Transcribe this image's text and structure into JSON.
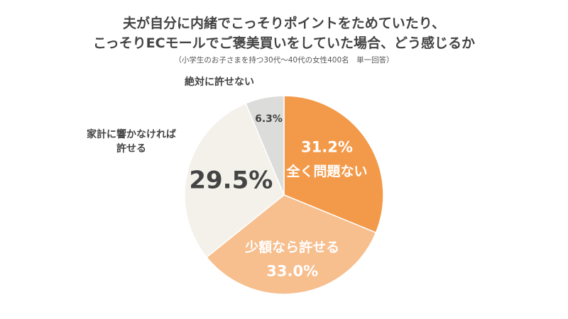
{
  "header": {
    "title_line1": "夫が自分に内緒でこっそりポイントをためていたり、",
    "title_line2": "こっそりECモールでご褒美買いをしていた場合、どう感じるか",
    "subtitle": "（小学生のお子さまを持つ30代〜40代の女性400名　単一回答）"
  },
  "chart_data": {
    "type": "pie",
    "title": "夫が自分に内緒でこっそりポイントをためていたり、こっそりECモールでご褒美買いをしていた場合、どう感じるか",
    "subtitle": "（小学生のお子さまを持つ30代〜40代の女性400名　単一回答）",
    "start_angle_deg": 0,
    "direction": "clockwise",
    "slices": [
      {
        "label": "全く問題ない",
        "value": 31.2,
        "value_label": "31.2%",
        "color": "#F39A4A"
      },
      {
        "label": "少額なら許せる",
        "value": 33.0,
        "value_label": "33.0%",
        "color": "#F7BE8E"
      },
      {
        "label": "家計に響かなければ許せる",
        "label_lines": [
          "家計に響かなければ",
          "許せる"
        ],
        "value": 29.5,
        "value_label": "29.5%",
        "color": "#F3F1EA"
      },
      {
        "label": "絶対に許せない",
        "value": 6.3,
        "value_label": "6.3%",
        "color": "#DCDCDA"
      }
    ]
  }
}
